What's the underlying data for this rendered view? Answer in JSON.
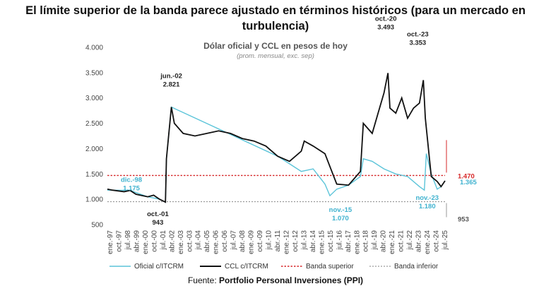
{
  "title": "El límite superior de la banda parece ajustado en términos históricos (para un mercado en turbulencia)",
  "source_prefix": "Fuente: ",
  "source_name": "Portfolio Personal Inversiones (PPI)",
  "colors": {
    "oficial": "#5bc4d9",
    "ccl": "#111111",
    "banda_superior": "#d62728",
    "banda_inferior": "#9a9a9a",
    "annotation_oficial": "#3fb2cf",
    "annotation_ccl": "#222222",
    "annotation_sup": "#d62728",
    "annotation_inf": "#555555"
  },
  "chart_data": {
    "type": "line",
    "title": "Dólar oficial y CCL en pesos de hoy",
    "subtitle": "(prom. mensual, exc. sep)",
    "xlabel": "",
    "ylabel": "",
    "ylim": [
      500,
      4000
    ],
    "yticks": [
      500,
      1000,
      1500,
      2000,
      2500,
      3000,
      3500,
      4000
    ],
    "ytick_labels": [
      "500",
      "1.000",
      "1.500",
      "2.000",
      "2.500",
      "3.000",
      "3.500",
      "4.000"
    ],
    "x_start": "1997-01",
    "x_end": "2025-08",
    "xtick_labels": [
      "ene.-97",
      "oct.-97",
      "jul.-98",
      "abr.-99",
      "ene.-00",
      "oct.-00",
      "jul.-01",
      "abr.-02",
      "ene.-03",
      "oct.-03",
      "jul.-04",
      "abr.-05",
      "ene.-06",
      "oct.-06",
      "jul.-07",
      "abr.-08",
      "ene.-09",
      "oct.-09",
      "jul.-10",
      "abr.-11",
      "ene.-12",
      "oct.-12",
      "jul.-13",
      "abr.-14",
      "ene.-15",
      "oct.-15",
      "jul.-16",
      "abr.-17",
      "ene.-18",
      "oct.-18",
      "jul.-19",
      "abr.-20",
      "ene.-21",
      "oct.-21",
      "jul.-22",
      "abr.-23",
      "ene.-24",
      "oct.-24",
      "jul.-25"
    ],
    "grid": false,
    "legend_position": "bottom",
    "series": [
      {
        "name": "Oficial c/ITCRM",
        "x": [
          "1997-01",
          "1998-12",
          "2000-06",
          "2001-06",
          "2001-12",
          "2002-01",
          "2002-06",
          "2011-06",
          "2012-06",
          "2013-06",
          "2014-06",
          "2015-06",
          "2015-11",
          "2016-06",
          "2017-06",
          "2018-06",
          "2018-09",
          "2019-06",
          "2020-06",
          "2021-06",
          "2022-06",
          "2023-06",
          "2023-11",
          "2024-01",
          "2024-06",
          "2024-12",
          "2025-04",
          "2025-08"
        ],
        "values": [
          1180,
          1175,
          1050,
          1000,
          943,
          1800,
          2821,
          1850,
          1700,
          1550,
          1600,
          1300,
          1070,
          1200,
          1280,
          1450,
          1800,
          1750,
          1600,
          1500,
          1450,
          1250,
          1180,
          1900,
          1500,
          1200,
          1250,
          1365
        ]
      },
      {
        "name": "CCL c/ITCRM",
        "x": [
          "1997-01",
          "1997-06",
          "1998-06",
          "1998-12",
          "1999-06",
          "2000-06",
          "2000-12",
          "2001-06",
          "2001-12",
          "2002-01",
          "2002-06",
          "2002-09",
          "2003-06",
          "2004-06",
          "2005-06",
          "2006-06",
          "2007-06",
          "2008-06",
          "2009-06",
          "2010-06",
          "2011-06",
          "2012-06",
          "2013-06",
          "2013-09",
          "2014-06",
          "2015-06",
          "2015-12",
          "2016-06",
          "2017-06",
          "2018-06",
          "2018-09",
          "2019-06",
          "2019-12",
          "2020-06",
          "2020-10",
          "2020-12",
          "2021-06",
          "2021-12",
          "2022-06",
          "2022-12",
          "2023-06",
          "2023-10",
          "2023-12",
          "2024-06",
          "2024-12",
          "2025-04",
          "2025-08"
        ],
        "values": [
          1200,
          1180,
          1150,
          1175,
          1100,
          1050,
          1080,
          1000,
          943,
          1800,
          2821,
          2500,
          2300,
          2250,
          2300,
          2350,
          2300,
          2200,
          2150,
          2050,
          1850,
          1750,
          1950,
          2150,
          2050,
          1900,
          1600,
          1300,
          1280,
          1550,
          2500,
          2300,
          2700,
          3100,
          3493,
          2800,
          2700,
          3000,
          2600,
          2800,
          2900,
          3353,
          2600,
          1450,
          1350,
          1250,
          1365
        ]
      },
      {
        "name": "Banda superior",
        "values": [
          1470
        ]
      },
      {
        "name": "Banda inferior",
        "values": [
          953
        ]
      }
    ],
    "annotations": [
      {
        "text": "jun.-02",
        "x": "2002-06",
        "y": 2821,
        "series": "CCL c/ITCRM"
      },
      {
        "text": "2.821",
        "x": "2002-06",
        "y": 2821,
        "series": "CCL c/ITCRM"
      },
      {
        "text": "dic.-98",
        "x": "1998-12",
        "y": 1175,
        "series": "Oficial c/ITCRM"
      },
      {
        "text": "1.175",
        "x": "1998-12",
        "y": 1175,
        "series": "Oficial c/ITCRM"
      },
      {
        "text": "oct.-01",
        "x": "2001-10",
        "y": 943,
        "series": "CCL c/ITCRM"
      },
      {
        "text": "943",
        "x": "2001-10",
        "y": 943,
        "series": "CCL c/ITCRM"
      },
      {
        "text": "oct.-20",
        "x": "2020-10",
        "y": 3493,
        "series": "CCL c/ITCRM"
      },
      {
        "text": "3.493",
        "x": "2020-10",
        "y": 3493,
        "series": "CCL c/ITCRM"
      },
      {
        "text": "oct.-23",
        "x": "2023-10",
        "y": 3353,
        "series": "CCL c/ITCRM"
      },
      {
        "text": "3.353",
        "x": "2023-10",
        "y": 3353,
        "series": "CCL c/ITCRM"
      },
      {
        "text": "nov.-15",
        "x": "2015-11",
        "y": 1070,
        "series": "Oficial c/ITCRM"
      },
      {
        "text": "1.070",
        "x": "2015-11",
        "y": 1070,
        "series": "Oficial c/ITCRM"
      },
      {
        "text": "nov.-23",
        "x": "2023-11",
        "y": 1180,
        "series": "Oficial c/ITCRM"
      },
      {
        "text": "1.180",
        "x": "2023-11",
        "y": 1180,
        "series": "Oficial c/ITCRM"
      },
      {
        "text": "1.470",
        "x": "2025-08",
        "y": 1470,
        "series": "Banda superior"
      },
      {
        "text": "1.365",
        "x": "2025-08",
        "y": 1365,
        "series": "Oficial c/ITCRM"
      },
      {
        "text": "953",
        "x": "2025-08",
        "y": 953,
        "series": "Banda inferior"
      }
    ]
  }
}
